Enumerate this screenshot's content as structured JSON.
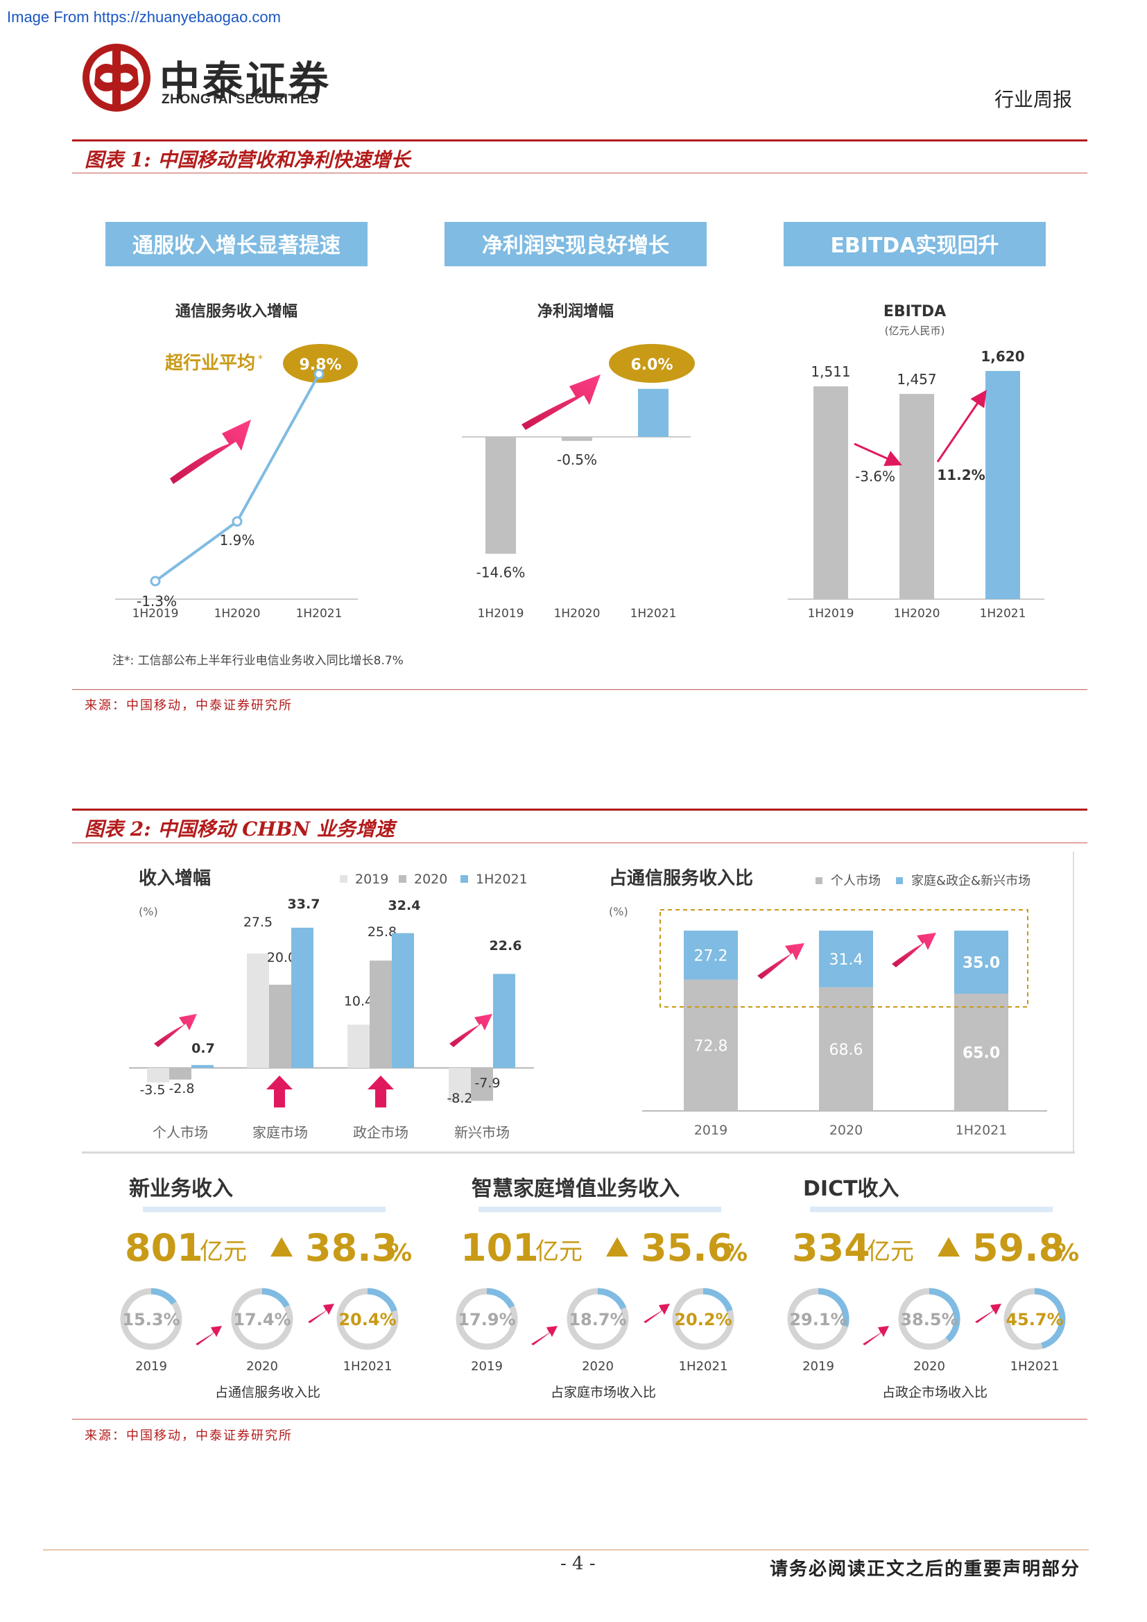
{
  "watermark": "Image From https://zhuanyebaogao.com",
  "header": {
    "brand_cn": "中泰证券",
    "brand_en": "ZHONGTAI SECURITIES",
    "report_type": "行业周报"
  },
  "colors": {
    "accent_red": "#b31b1b",
    "blue": "#7fbbe2",
    "gray": "#c0c0c0",
    "gold": "#c89a16",
    "pink": "#e0195f"
  },
  "figure1": {
    "title": "图表 1:  中国移动营收和净利快速增长",
    "banners": [
      "通服收入增长显著提速",
      "净利润实现良好增长",
      "EBITDA实现回升"
    ],
    "note": "注*:  工信部公布上半年行业电信业务收入同比增长8.7%",
    "source": "来源：中国移动，中泰证券研究所"
  },
  "figure2": {
    "title": "图表 2:  中国移动 CHBN 业务增速",
    "source": "来源：中国移动，中泰证券研究所"
  },
  "chart_data": [
    {
      "type": "line",
      "title": "通信服务收入增幅",
      "categories": [
        "1H2019",
        "1H2020",
        "1H2021"
      ],
      "values": [
        -1.3,
        1.9,
        9.8
      ],
      "data_labels": [
        "-1.3%",
        "1.9%",
        "9.8%"
      ],
      "annotation": "超行业平均",
      "annotation_mark": "*"
    },
    {
      "type": "bar",
      "title": "净利润增幅",
      "categories": [
        "1H2019",
        "1H2020",
        "1H2021"
      ],
      "values": [
        -14.6,
        -0.5,
        6.0
      ],
      "data_labels": [
        "-14.6%",
        "-0.5%",
        "6.0%"
      ]
    },
    {
      "type": "bar",
      "title": "EBITDA",
      "subtitle": "(亿元人民币)",
      "categories": [
        "1H2019",
        "1H2020",
        "1H2021"
      ],
      "values": [
        1511,
        1457,
        1620
      ],
      "data_labels": [
        "1,511",
        "1,457",
        "1,620"
      ],
      "growth_labels": [
        "-3.6%",
        "11.2%"
      ]
    },
    {
      "type": "bar",
      "title": "收入增幅",
      "ylabel": "(%)",
      "categories": [
        "个人市场",
        "家庭市场",
        "政企市场",
        "新兴市场"
      ],
      "legend": [
        "2019",
        "2020",
        "1H2021"
      ],
      "series": [
        {
          "name": "2019",
          "values": [
            -3.5,
            27.5,
            10.4,
            -8.2
          ]
        },
        {
          "name": "2020",
          "values": [
            -2.8,
            20.0,
            25.8,
            -7.9
          ]
        },
        {
          "name": "1H2021",
          "values": [
            0.7,
            33.7,
            32.4,
            22.6
          ]
        }
      ],
      "data_labels": [
        [
          "-3.5",
          "-2.8",
          "0.7"
        ],
        [
          "27.5",
          "20.0",
          "33.7"
        ],
        [
          "10.4",
          "25.8",
          "32.4"
        ],
        [
          "-8.2",
          "-7.9",
          "22.6"
        ]
      ]
    },
    {
      "type": "bar",
      "stacked": true,
      "title": "占通信服务收入比",
      "ylabel": "(%)",
      "categories": [
        "2019",
        "2020",
        "1H2021"
      ],
      "legend": [
        "个人市场",
        "家庭&政企&新兴市场"
      ],
      "series": [
        {
          "name": "个人市场",
          "values": [
            72.8,
            68.6,
            65.0
          ]
        },
        {
          "name": "家庭&政企&新兴市场",
          "values": [
            27.2,
            31.4,
            35.0
          ]
        }
      ],
      "data_labels": [
        [
          "72.8",
          "68.6",
          "65.0"
        ],
        [
          "27.2",
          "31.4",
          "35.0"
        ]
      ]
    }
  ],
  "kpis": [
    {
      "title": "新业务收入",
      "value": "801",
      "unit": "亿元",
      "growth": "38.3",
      "pct": "%",
      "rings": [
        {
          "label": "15.3%",
          "value": 15.3,
          "year": "2019"
        },
        {
          "label": "17.4%",
          "value": 17.4,
          "year": "2020"
        },
        {
          "label": "20.4%",
          "value": 20.4,
          "year": "1H2021"
        }
      ],
      "caption": "占通信服务收入比"
    },
    {
      "title": "智慧家庭增值业务收入",
      "value": "101",
      "unit": "亿元",
      "growth": "35.6",
      "pct": "%",
      "rings": [
        {
          "label": "17.9%",
          "value": 17.9,
          "year": "2019"
        },
        {
          "label": "18.7%",
          "value": 18.7,
          "year": "2020"
        },
        {
          "label": "20.2%",
          "value": 20.2,
          "year": "1H2021"
        }
      ],
      "caption": "占家庭市场收入比"
    },
    {
      "title": "DICT收入",
      "value": "334",
      "unit": "亿元",
      "growth": "59.8",
      "pct": "%",
      "rings": [
        {
          "label": "29.1%",
          "value": 29.1,
          "year": "2019"
        },
        {
          "label": "38.5%",
          "value": 38.5,
          "year": "2020"
        },
        {
          "label": "45.7%",
          "value": 45.7,
          "year": "1H2021"
        }
      ],
      "caption": "占政企市场收入比"
    }
  ],
  "footer": {
    "page": "- 4 -",
    "disclaimer": "请务必阅读正文之后的重要声明部分"
  }
}
